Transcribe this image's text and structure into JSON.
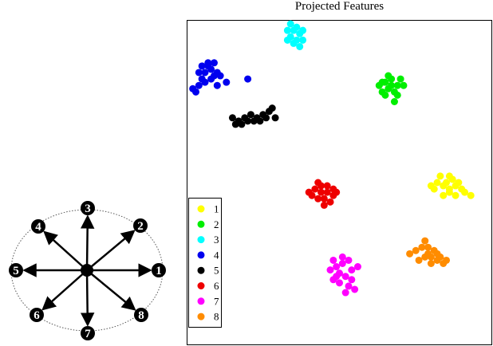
{
  "directions": [
    "1",
    "2",
    "3",
    "4",
    "5",
    "6",
    "7",
    "8"
  ],
  "chart_data": {
    "type": "scatter",
    "title": "Projected Features",
    "xlabel": "",
    "ylabel": "",
    "grid": false,
    "legend_placement": "bottom-left",
    "colors": [
      "#ffff00",
      "#00ee00",
      "#00ffff",
      "#0000ee",
      "#000000",
      "#ee0000",
      "#ff00ff",
      "#ff8c00"
    ],
    "series": [
      {
        "name": "1",
        "points": [
          [
            0.8,
            0.49
          ],
          [
            0.82,
            0.5
          ],
          [
            0.84,
            0.49
          ],
          [
            0.86,
            0.48
          ],
          [
            0.85,
            0.5
          ],
          [
            0.88,
            0.49
          ],
          [
            0.9,
            0.48
          ],
          [
            0.87,
            0.51
          ],
          [
            0.83,
            0.52
          ],
          [
            0.86,
            0.47
          ],
          [
            0.89,
            0.5
          ],
          [
            0.91,
            0.47
          ],
          [
            0.93,
            0.46
          ],
          [
            0.84,
            0.46
          ],
          [
            0.81,
            0.48
          ],
          [
            0.88,
            0.46
          ],
          [
            0.86,
            0.52
          ]
        ]
      },
      {
        "name": "2",
        "points": [
          [
            0.63,
            0.8
          ],
          [
            0.65,
            0.81
          ],
          [
            0.67,
            0.8
          ],
          [
            0.69,
            0.8
          ],
          [
            0.66,
            0.79
          ],
          [
            0.68,
            0.78
          ],
          [
            0.7,
            0.82
          ],
          [
            0.64,
            0.78
          ],
          [
            0.67,
            0.82
          ],
          [
            0.65,
            0.77
          ],
          [
            0.69,
            0.77
          ],
          [
            0.71,
            0.8
          ],
          [
            0.66,
            0.83
          ],
          [
            0.68,
            0.75
          ],
          [
            0.64,
            0.81
          ]
        ]
      },
      {
        "name": "3",
        "points": [
          [
            0.33,
            0.97
          ],
          [
            0.35,
            0.97
          ],
          [
            0.37,
            0.96
          ],
          [
            0.36,
            0.98
          ],
          [
            0.34,
            0.95
          ],
          [
            0.38,
            0.97
          ],
          [
            0.36,
            0.94
          ],
          [
            0.35,
            0.93
          ],
          [
            0.37,
            0.92
          ],
          [
            0.38,
            0.94
          ],
          [
            0.33,
            0.94
          ],
          [
            0.34,
            0.99
          ]
        ]
      },
      {
        "name": "4",
        "points": [
          [
            0.02,
            0.79
          ],
          [
            0.04,
            0.8
          ],
          [
            0.05,
            0.82
          ],
          [
            0.06,
            0.84
          ],
          [
            0.07,
            0.86
          ],
          [
            0.08,
            0.85
          ],
          [
            0.09,
            0.83
          ],
          [
            0.1,
            0.84
          ],
          [
            0.06,
            0.81
          ],
          [
            0.08,
            0.82
          ],
          [
            0.11,
            0.83
          ],
          [
            0.07,
            0.87
          ],
          [
            0.05,
            0.86
          ],
          [
            0.03,
            0.78
          ],
          [
            0.13,
            0.81
          ],
          [
            0.1,
            0.8
          ],
          [
            0.2,
            0.82
          ],
          [
            0.09,
            0.87
          ],
          [
            0.04,
            0.84
          ]
        ]
      },
      {
        "name": "5",
        "points": [
          [
            0.15,
            0.7
          ],
          [
            0.17,
            0.69
          ],
          [
            0.19,
            0.7
          ],
          [
            0.21,
            0.71
          ],
          [
            0.23,
            0.7
          ],
          [
            0.25,
            0.71
          ],
          [
            0.27,
            0.72
          ],
          [
            0.29,
            0.7
          ],
          [
            0.16,
            0.68
          ],
          [
            0.18,
            0.68
          ],
          [
            0.22,
            0.69
          ],
          [
            0.24,
            0.69
          ],
          [
            0.26,
            0.7
          ],
          [
            0.28,
            0.73
          ],
          [
            0.2,
            0.69
          ]
        ]
      },
      {
        "name": "6",
        "points": [
          [
            0.4,
            0.47
          ],
          [
            0.42,
            0.48
          ],
          [
            0.44,
            0.47
          ],
          [
            0.46,
            0.47
          ],
          [
            0.48,
            0.46
          ],
          [
            0.43,
            0.45
          ],
          [
            0.45,
            0.45
          ],
          [
            0.47,
            0.44
          ],
          [
            0.41,
            0.46
          ],
          [
            0.44,
            0.49
          ],
          [
            0.46,
            0.49
          ],
          [
            0.49,
            0.47
          ],
          [
            0.45,
            0.43
          ],
          [
            0.43,
            0.5
          ],
          [
            0.48,
            0.48
          ]
        ]
      },
      {
        "name": "7",
        "points": [
          [
            0.47,
            0.23
          ],
          [
            0.49,
            0.24
          ],
          [
            0.51,
            0.25
          ],
          [
            0.53,
            0.26
          ],
          [
            0.5,
            0.22
          ],
          [
            0.52,
            0.21
          ],
          [
            0.54,
            0.2
          ],
          [
            0.48,
            0.2
          ],
          [
            0.5,
            0.19
          ],
          [
            0.53,
            0.18
          ],
          [
            0.55,
            0.17
          ],
          [
            0.52,
            0.16
          ],
          [
            0.49,
            0.21
          ],
          [
            0.51,
            0.27
          ],
          [
            0.54,
            0.23
          ],
          [
            0.56,
            0.24
          ],
          [
            0.48,
            0.26
          ]
        ]
      },
      {
        "name": "8",
        "points": [
          [
            0.73,
            0.28
          ],
          [
            0.75,
            0.29
          ],
          [
            0.77,
            0.3
          ],
          [
            0.79,
            0.3
          ],
          [
            0.81,
            0.29
          ],
          [
            0.8,
            0.27
          ],
          [
            0.82,
            0.26
          ],
          [
            0.84,
            0.25
          ],
          [
            0.78,
            0.27
          ],
          [
            0.76,
            0.26
          ],
          [
            0.8,
            0.25
          ],
          [
            0.83,
            0.27
          ],
          [
            0.78,
            0.32
          ],
          [
            0.82,
            0.28
          ],
          [
            0.85,
            0.26
          ],
          [
            0.79,
            0.28
          ]
        ]
      }
    ]
  }
}
